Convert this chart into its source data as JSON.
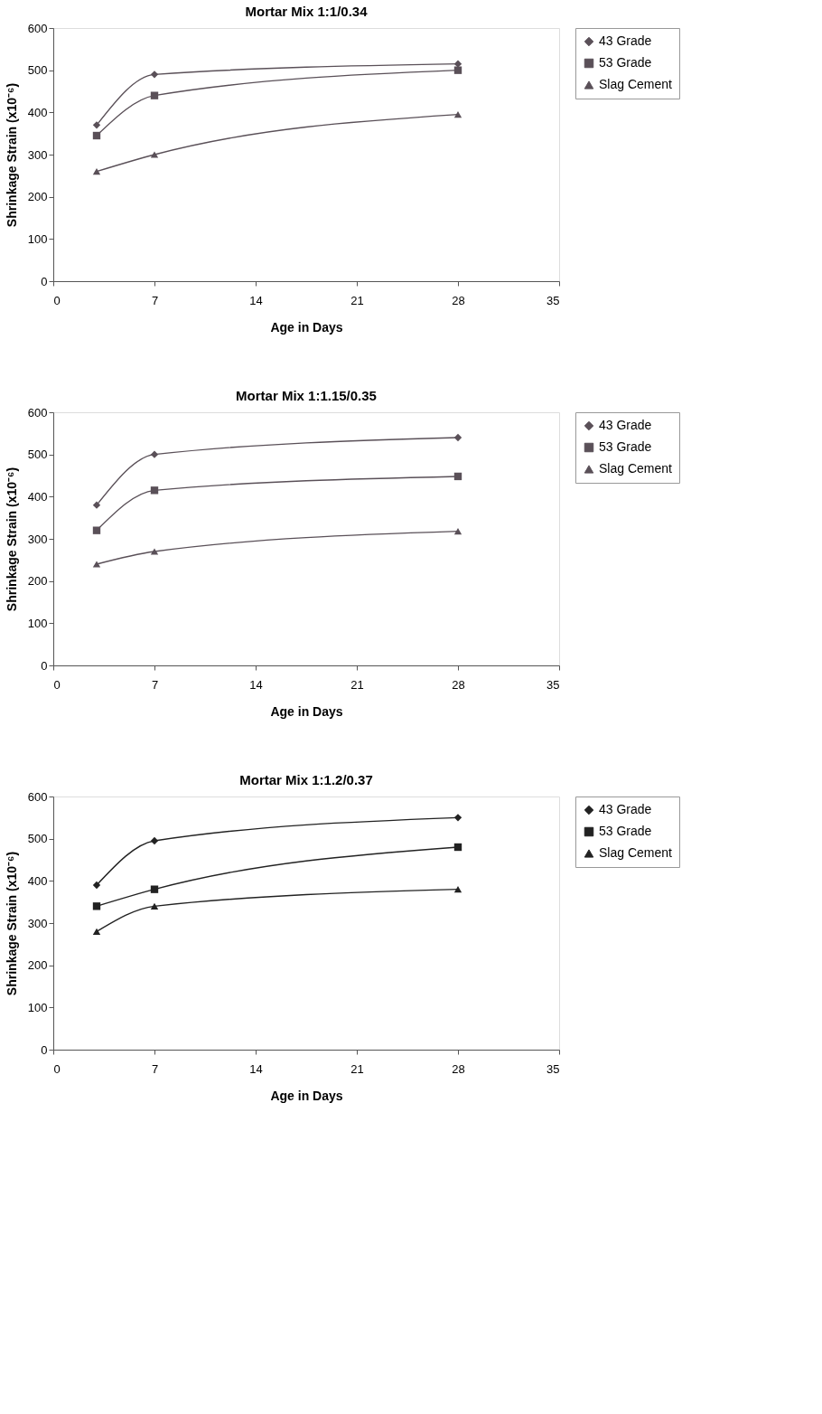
{
  "chart_data": [
    {
      "type": "line",
      "title": "Mortar Mix 1:1/0.34",
      "xlabel": "Age in Days",
      "ylabel": "Shrinkage Strain (x10⁻⁶)",
      "x": [
        3,
        7,
        28
      ],
      "xlim": [
        0,
        35
      ],
      "xticks": [
        0,
        7,
        14,
        21,
        28,
        35
      ],
      "ylim": [
        0,
        600
      ],
      "yticks": [
        0,
        100,
        200,
        300,
        400,
        500,
        600
      ],
      "grid": false,
      "legend": "right",
      "line_style": "solid",
      "series": [
        {
          "name": "43 Grade",
          "color": "#5a5058",
          "marker": "diamond",
          "values": [
            370,
            490,
            515
          ]
        },
        {
          "name": "53 Grade",
          "color": "#5a5058",
          "marker": "square",
          "values": [
            345,
            440,
            500
          ]
        },
        {
          "name": "Slag Cement",
          "color": "#5a5058",
          "marker": "triangle",
          "values": [
            260,
            300,
            395
          ]
        }
      ]
    },
    {
      "type": "line",
      "title": "Mortar Mix 1:1.15/0.35",
      "xlabel": "Age in Days",
      "ylabel": "Shrinkage Strain (x10⁻⁶)",
      "x": [
        3,
        7,
        28
      ],
      "xlim": [
        0,
        35
      ],
      "xticks": [
        0,
        7,
        14,
        21,
        28,
        35
      ],
      "ylim": [
        0,
        600
      ],
      "yticks": [
        0,
        100,
        200,
        300,
        400,
        500,
        600
      ],
      "grid": false,
      "legend": "right",
      "line_style": "solid",
      "series": [
        {
          "name": "43 Grade",
          "color": "#5a5058",
          "marker": "diamond",
          "values": [
            380,
            500,
            540
          ]
        },
        {
          "name": "53 Grade",
          "color": "#5a5058",
          "marker": "square",
          "values": [
            320,
            415,
            448
          ]
        },
        {
          "name": "Slag Cement",
          "color": "#5a5058",
          "marker": "triangle",
          "values": [
            240,
            270,
            318
          ]
        }
      ]
    },
    {
      "type": "line",
      "title": "Mortar Mix 1:1.2/0.37",
      "xlabel": "Age in Days",
      "ylabel": "Shrinkage Strain (x10⁻⁶)",
      "x": [
        3,
        7,
        28
      ],
      "xlim": [
        0,
        35
      ],
      "xticks": [
        0,
        7,
        14,
        21,
        28,
        35
      ],
      "ylim": [
        0,
        600
      ],
      "yticks": [
        0,
        100,
        200,
        300,
        400,
        500,
        600
      ],
      "grid": false,
      "legend": "right",
      "line_style": "solid",
      "series": [
        {
          "name": "43 Grade",
          "color": "#222222",
          "marker": "diamond",
          "values": [
            390,
            495,
            550
          ]
        },
        {
          "name": "53 Grade",
          "color": "#222222",
          "marker": "square",
          "values": [
            340,
            380,
            480
          ]
        },
        {
          "name": "Slag Cement",
          "color": "#222222",
          "marker": "triangle",
          "values": [
            280,
            340,
            380
          ]
        }
      ]
    }
  ]
}
